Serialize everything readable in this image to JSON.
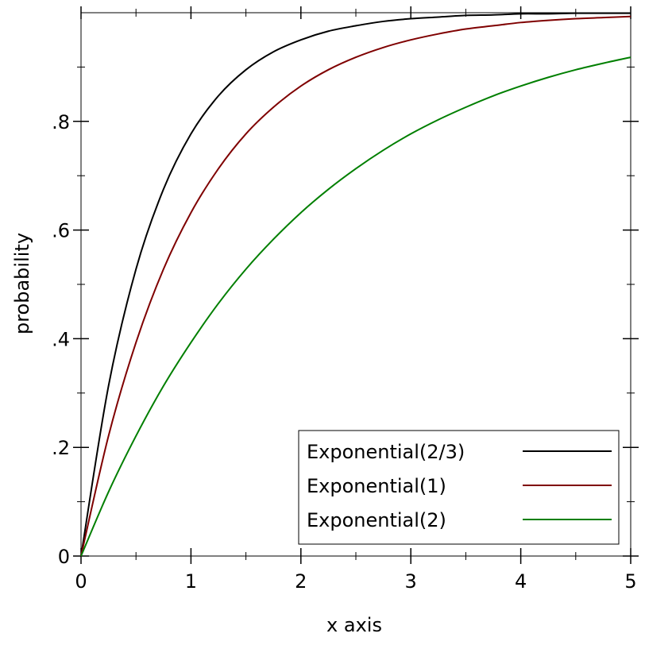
{
  "chart_data": {
    "type": "line",
    "xlabel": "x axis",
    "ylabel": "probability",
    "xlim": [
      0,
      5
    ],
    "ylim": [
      0,
      1
    ],
    "x_ticks": [
      {
        "value": 0,
        "label": "0"
      },
      {
        "value": 1,
        "label": "1"
      },
      {
        "value": 2,
        "label": "2"
      },
      {
        "value": 3,
        "label": "3"
      },
      {
        "value": 4,
        "label": "4"
      },
      {
        "value": 5,
        "label": "5"
      }
    ],
    "y_ticks": [
      {
        "value": 0,
        "label": "0"
      },
      {
        "value": 0.2,
        "label": ".2"
      },
      {
        "value": 0.4,
        "label": ".4"
      },
      {
        "value": 0.6,
        "label": ".6"
      },
      {
        "value": 0.8,
        "label": ".8"
      }
    ],
    "grid": false,
    "legend_position": "bottom-right",
    "x": [
      0,
      0.25,
      0.5,
      0.75,
      1,
      1.25,
      1.5,
      1.75,
      2,
      2.25,
      2.5,
      2.75,
      3,
      3.25,
      3.5,
      3.75,
      4,
      4.25,
      4.5,
      4.75,
      5
    ],
    "series": [
      {
        "name": "Exponential(2/3)",
        "color": "#000000",
        "values": [
          0,
          0.313,
          0.528,
          0.675,
          0.777,
          0.847,
          0.895,
          0.928,
          0.95,
          0.966,
          0.976,
          0.984,
          0.989,
          0.992,
          0.995,
          0.996,
          0.998,
          0.998,
          0.999,
          0.999,
          0.999
        ]
      },
      {
        "name": "Exponential(1)",
        "color": "#7f0000",
        "values": [
          0,
          0.221,
          0.393,
          0.528,
          0.632,
          0.713,
          0.777,
          0.826,
          0.865,
          0.895,
          0.918,
          0.936,
          0.95,
          0.961,
          0.97,
          0.976,
          0.982,
          0.986,
          0.989,
          0.991,
          0.993
        ]
      },
      {
        "name": "Exponential(2)",
        "color": "#007f00",
        "values": [
          0,
          0.118,
          0.221,
          0.313,
          0.393,
          0.465,
          0.528,
          0.583,
          0.632,
          0.675,
          0.713,
          0.747,
          0.777,
          0.803,
          0.826,
          0.847,
          0.865,
          0.881,
          0.895,
          0.907,
          0.918
        ]
      }
    ]
  }
}
